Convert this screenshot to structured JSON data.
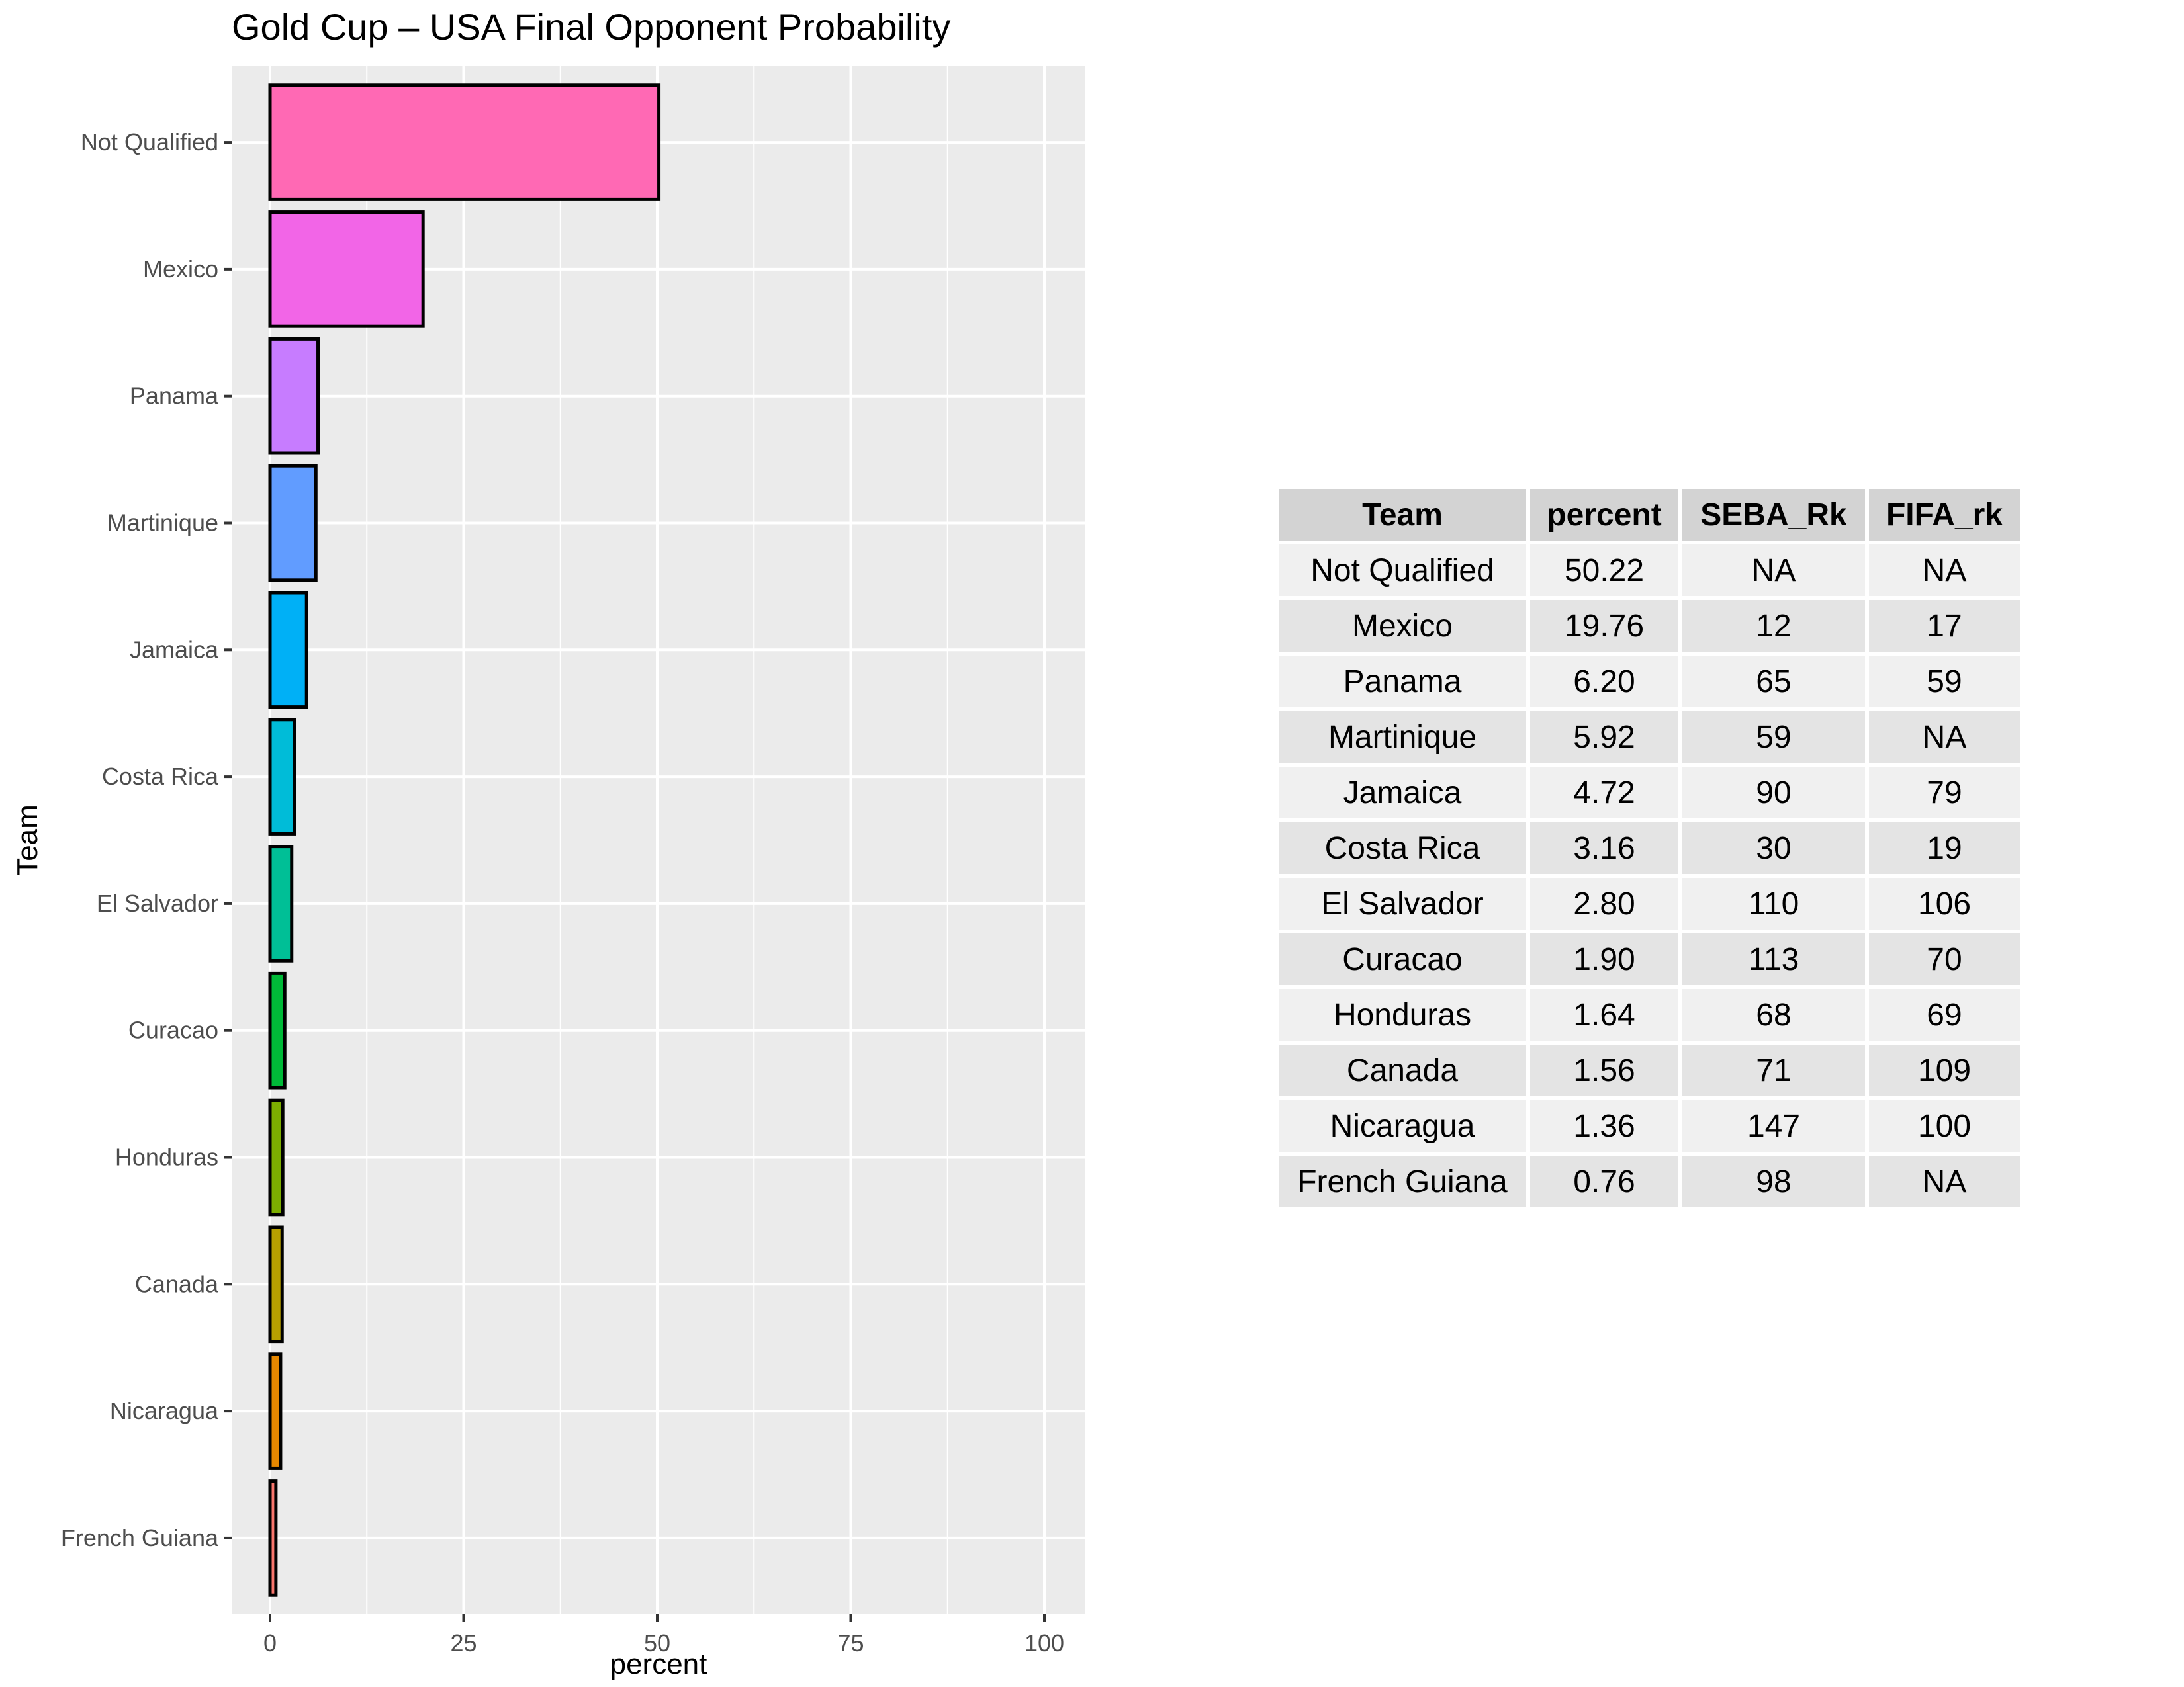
{
  "chart_data": {
    "type": "bar",
    "orientation": "horizontal",
    "title": "Gold Cup – USA Final Opponent Probability",
    "xlabel": "percent",
    "ylabel": "Team",
    "xlim": [
      0,
      100
    ],
    "x_ticks": [
      "0",
      "25",
      "50",
      "75",
      "100"
    ],
    "grid": true,
    "categories": [
      "Not Qualified",
      "Mexico",
      "Panama",
      "Martinique",
      "Jamaica",
      "Costa Rica",
      "El Salvador",
      "Curacao",
      "Honduras",
      "Canada",
      "Nicaragua",
      "French Guiana"
    ],
    "values": [
      50.22,
      19.76,
      6.2,
      5.92,
      4.72,
      3.16,
      2.8,
      1.9,
      1.64,
      1.56,
      1.36,
      0.76
    ],
    "colors": [
      "#FF69B4",
      "#F265E7",
      "#C77CFF",
      "#619CFF",
      "#00B0F6",
      "#00BCD8",
      "#00BF96",
      "#00BA38",
      "#7CAE00",
      "#B79F00",
      "#E58700",
      "#F8766D"
    ]
  },
  "table": {
    "headers": [
      "Team",
      "percent",
      "SEBA_Rk",
      "FIFA_rk"
    ],
    "rows": [
      [
        "Not Qualified",
        "50.22",
        "NA",
        "NA"
      ],
      [
        "Mexico",
        "19.76",
        "12",
        "17"
      ],
      [
        "Panama",
        "6.20",
        "65",
        "59"
      ],
      [
        "Martinique",
        "5.92",
        "59",
        "NA"
      ],
      [
        "Jamaica",
        "4.72",
        "90",
        "79"
      ],
      [
        "Costa Rica",
        "3.16",
        "30",
        "19"
      ],
      [
        "El Salvador",
        "2.80",
        "110",
        "106"
      ],
      [
        "Curacao",
        "1.90",
        "113",
        "70"
      ],
      [
        "Honduras",
        "1.64",
        "68",
        "69"
      ],
      [
        "Canada",
        "1.56",
        "71",
        "109"
      ],
      [
        "Nicaragua",
        "1.36",
        "147",
        "100"
      ],
      [
        "French Guiana",
        "0.76",
        "98",
        "NA"
      ]
    ]
  }
}
